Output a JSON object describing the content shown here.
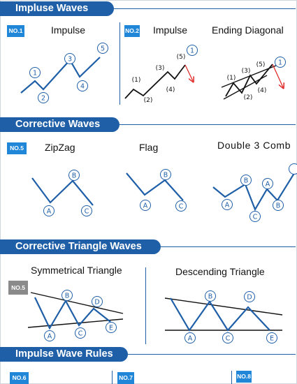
{
  "sections": {
    "impulse": {
      "label": "Impluse Waves"
    },
    "corrective": {
      "label": "Corrective Waves"
    },
    "triangle": {
      "label": "Corrective Triangle Waves"
    },
    "rules": {
      "label": "Impulse Wave Rules"
    }
  },
  "impulse_panels": [
    {
      "badge": "NO.1",
      "title": "Impulse",
      "labels": [
        "1",
        "2",
        "3",
        "4",
        "5"
      ]
    },
    {
      "badge": "NO.2",
      "title": "Impulse",
      "labels": [
        "(1)",
        "(2)",
        "(3)",
        "(4)",
        "(5)",
        "1"
      ]
    },
    {
      "title": "Ending Diagonal",
      "labels": [
        "(1)",
        "(2)",
        "(3)",
        "(4)",
        "(5)",
        "1"
      ]
    }
  ],
  "corrective_panels": [
    {
      "badge": "NO.5",
      "title": "ZipZag",
      "labels": [
        "A",
        "B",
        "C"
      ]
    },
    {
      "title": "Flag",
      "labels": [
        "A",
        "B",
        "C"
      ]
    },
    {
      "title": "Double 3 Comb",
      "labels": [
        "A",
        "B",
        "C",
        "A",
        "B"
      ]
    }
  ],
  "triangle_panels": [
    {
      "badge": "NO.5",
      "title": "Symmetrical Triangle",
      "labels": [
        "A",
        "B",
        "C",
        "D",
        "E"
      ]
    },
    {
      "title": "Descending Triangle",
      "labels": [
        "A",
        "B",
        "C",
        "D",
        "E"
      ]
    }
  ],
  "rules_badges": [
    "NO.6",
    "NO.7",
    "NO.8"
  ],
  "colors": {
    "accent": "#1f5fa8",
    "badge_blue": "#1f86d8",
    "badge_gray": "#8a8a8a",
    "arrow_red": "#e02020"
  }
}
